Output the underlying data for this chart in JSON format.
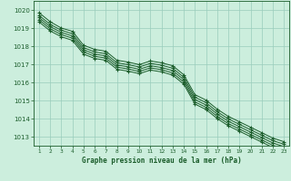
{
  "xlabel": "Graphe pression niveau de la mer (hPa)",
  "background_color": "#cceedd",
  "grid_color": "#99ccbb",
  "line_color": "#1a5c2a",
  "x_ticks": [
    1,
    2,
    3,
    4,
    5,
    6,
    7,
    8,
    9,
    10,
    11,
    12,
    13,
    14,
    15,
    16,
    17,
    18,
    19,
    20,
    21,
    22,
    23
  ],
  "ylim": [
    1012.5,
    1020.5
  ],
  "yticks": [
    1013,
    1014,
    1015,
    1016,
    1017,
    1018,
    1019,
    1020
  ],
  "series": [
    [
      1019.85,
      1019.35,
      1019.0,
      1018.82,
      1018.05,
      1017.82,
      1017.72,
      1017.22,
      1017.12,
      1016.98,
      1017.18,
      1017.08,
      1016.92,
      1016.42,
      1015.32,
      1015.02,
      1014.52,
      1014.12,
      1013.82,
      1013.52,
      1013.22,
      1012.92,
      1012.72
    ],
    [
      1019.7,
      1019.2,
      1018.88,
      1018.68,
      1017.92,
      1017.68,
      1017.58,
      1017.08,
      1016.98,
      1016.85,
      1017.05,
      1016.95,
      1016.78,
      1016.28,
      1015.18,
      1014.88,
      1014.38,
      1013.98,
      1013.68,
      1013.38,
      1013.08,
      1012.78,
      1012.58
    ],
    [
      1019.58,
      1019.08,
      1018.76,
      1018.56,
      1017.8,
      1017.56,
      1017.46,
      1016.96,
      1016.86,
      1016.72,
      1016.92,
      1016.82,
      1016.65,
      1016.15,
      1015.05,
      1014.75,
      1014.25,
      1013.85,
      1013.55,
      1013.25,
      1012.95,
      1012.65,
      1012.45
    ],
    [
      1019.46,
      1018.96,
      1018.64,
      1018.44,
      1017.68,
      1017.44,
      1017.34,
      1016.84,
      1016.74,
      1016.6,
      1016.8,
      1016.7,
      1016.52,
      1016.02,
      1014.92,
      1014.62,
      1014.12,
      1013.72,
      1013.42,
      1013.12,
      1012.82,
      1012.52,
      1012.32
    ],
    [
      1019.34,
      1018.84,
      1018.52,
      1018.32,
      1017.56,
      1017.32,
      1017.22,
      1016.72,
      1016.62,
      1016.48,
      1016.68,
      1016.58,
      1016.4,
      1015.9,
      1014.8,
      1014.5,
      1014.0,
      1013.6,
      1013.3,
      1013.0,
      1012.7,
      1012.4,
      1012.2
    ]
  ]
}
